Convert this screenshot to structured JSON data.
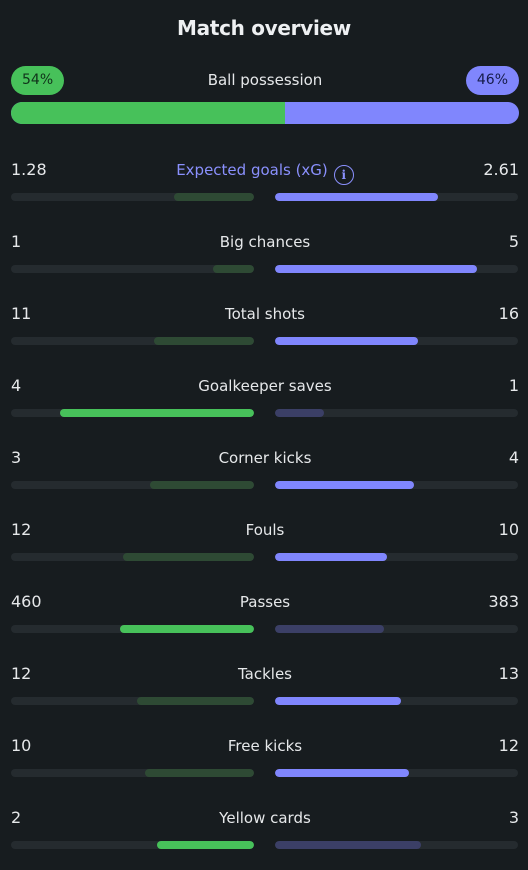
{
  "title": "Match overview",
  "colors": {
    "home_strong": "#47c15a",
    "home_weak": "#2e4a34",
    "away_strong": "#8086fd",
    "away_weak": "#3b3f66"
  },
  "possession": {
    "label": "Ball possession",
    "home": "54%",
    "away": "46%",
    "home_fraction": 0.54
  },
  "stats": [
    {
      "label": "Expected goals (xG)",
      "home": "1.28",
      "away": "2.61",
      "home_fraction": 0.33,
      "away_fraction": 0.67,
      "home_highlight": false,
      "away_highlight": true,
      "info_icon": true,
      "accent_label": true
    },
    {
      "label": "Big chances",
      "home": "1",
      "away": "5",
      "home_fraction": 0.17,
      "away_fraction": 0.83,
      "home_highlight": false,
      "away_highlight": true
    },
    {
      "label": "Total shots",
      "home": "11",
      "away": "16",
      "home_fraction": 0.41,
      "away_fraction": 0.59,
      "home_highlight": false,
      "away_highlight": true
    },
    {
      "label": "Goalkeeper saves",
      "home": "4",
      "away": "1",
      "home_fraction": 0.8,
      "away_fraction": 0.2,
      "home_highlight": true,
      "away_highlight": false
    },
    {
      "label": "Corner kicks",
      "home": "3",
      "away": "4",
      "home_fraction": 0.43,
      "away_fraction": 0.57,
      "home_highlight": false,
      "away_highlight": true
    },
    {
      "label": "Fouls",
      "home": "12",
      "away": "10",
      "home_fraction": 0.54,
      "away_fraction": 0.46,
      "home_highlight": false,
      "away_highlight": true
    },
    {
      "label": "Passes",
      "home": "460",
      "away": "383",
      "home_fraction": 0.55,
      "away_fraction": 0.45,
      "home_highlight": true,
      "away_highlight": false
    },
    {
      "label": "Tackles",
      "home": "12",
      "away": "13",
      "home_fraction": 0.48,
      "away_fraction": 0.52,
      "home_highlight": false,
      "away_highlight": true
    },
    {
      "label": "Free kicks",
      "home": "10",
      "away": "12",
      "home_fraction": 0.45,
      "away_fraction": 0.55,
      "home_highlight": false,
      "away_highlight": true
    },
    {
      "label": "Yellow cards",
      "home": "2",
      "away": "3",
      "home_fraction": 0.4,
      "away_fraction": 0.6,
      "home_highlight": true,
      "away_highlight": false
    }
  ]
}
